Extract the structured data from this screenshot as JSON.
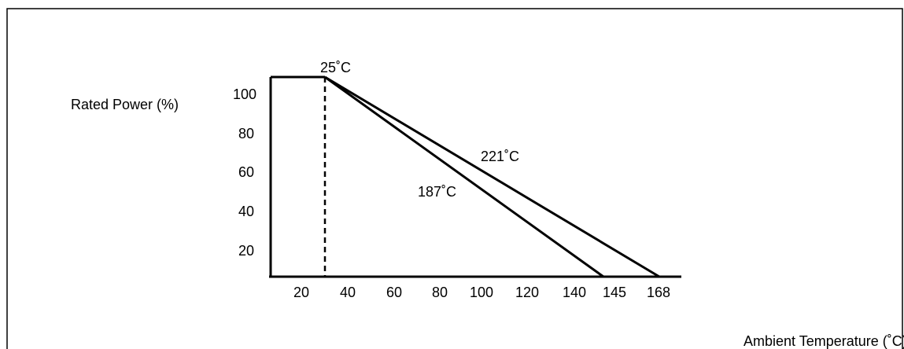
{
  "chart_data": {
    "type": "line",
    "ylabel": "Rated Power (%)",
    "xlabel": "Ambient Temperature (˚C)",
    "y_ticks": [
      "20",
      "40",
      "60",
      "80",
      "100"
    ],
    "x_ticks": [
      "20",
      "40",
      "60",
      "80",
      "100",
      "120",
      "140",
      "145",
      "168"
    ],
    "annotations": {
      "knee": "25˚C",
      "upper_line": "221˚C",
      "lower_line": "187˚C"
    },
    "series": [
      {
        "label": "221˚C",
        "points": [
          {
            "x": 25,
            "y": 100
          },
          {
            "x": 168,
            "y": 0
          }
        ]
      },
      {
        "label": "187˚C",
        "points": [
          {
            "x": 25,
            "y": 100
          },
          {
            "x": 145,
            "y": 0
          }
        ]
      }
    ],
    "plateau": [
      {
        "x": 0,
        "y": 100
      },
      {
        "x": 25,
        "y": 100
      }
    ],
    "reference_line_x": 25,
    "ylim": [
      0,
      100
    ],
    "grid": false
  }
}
